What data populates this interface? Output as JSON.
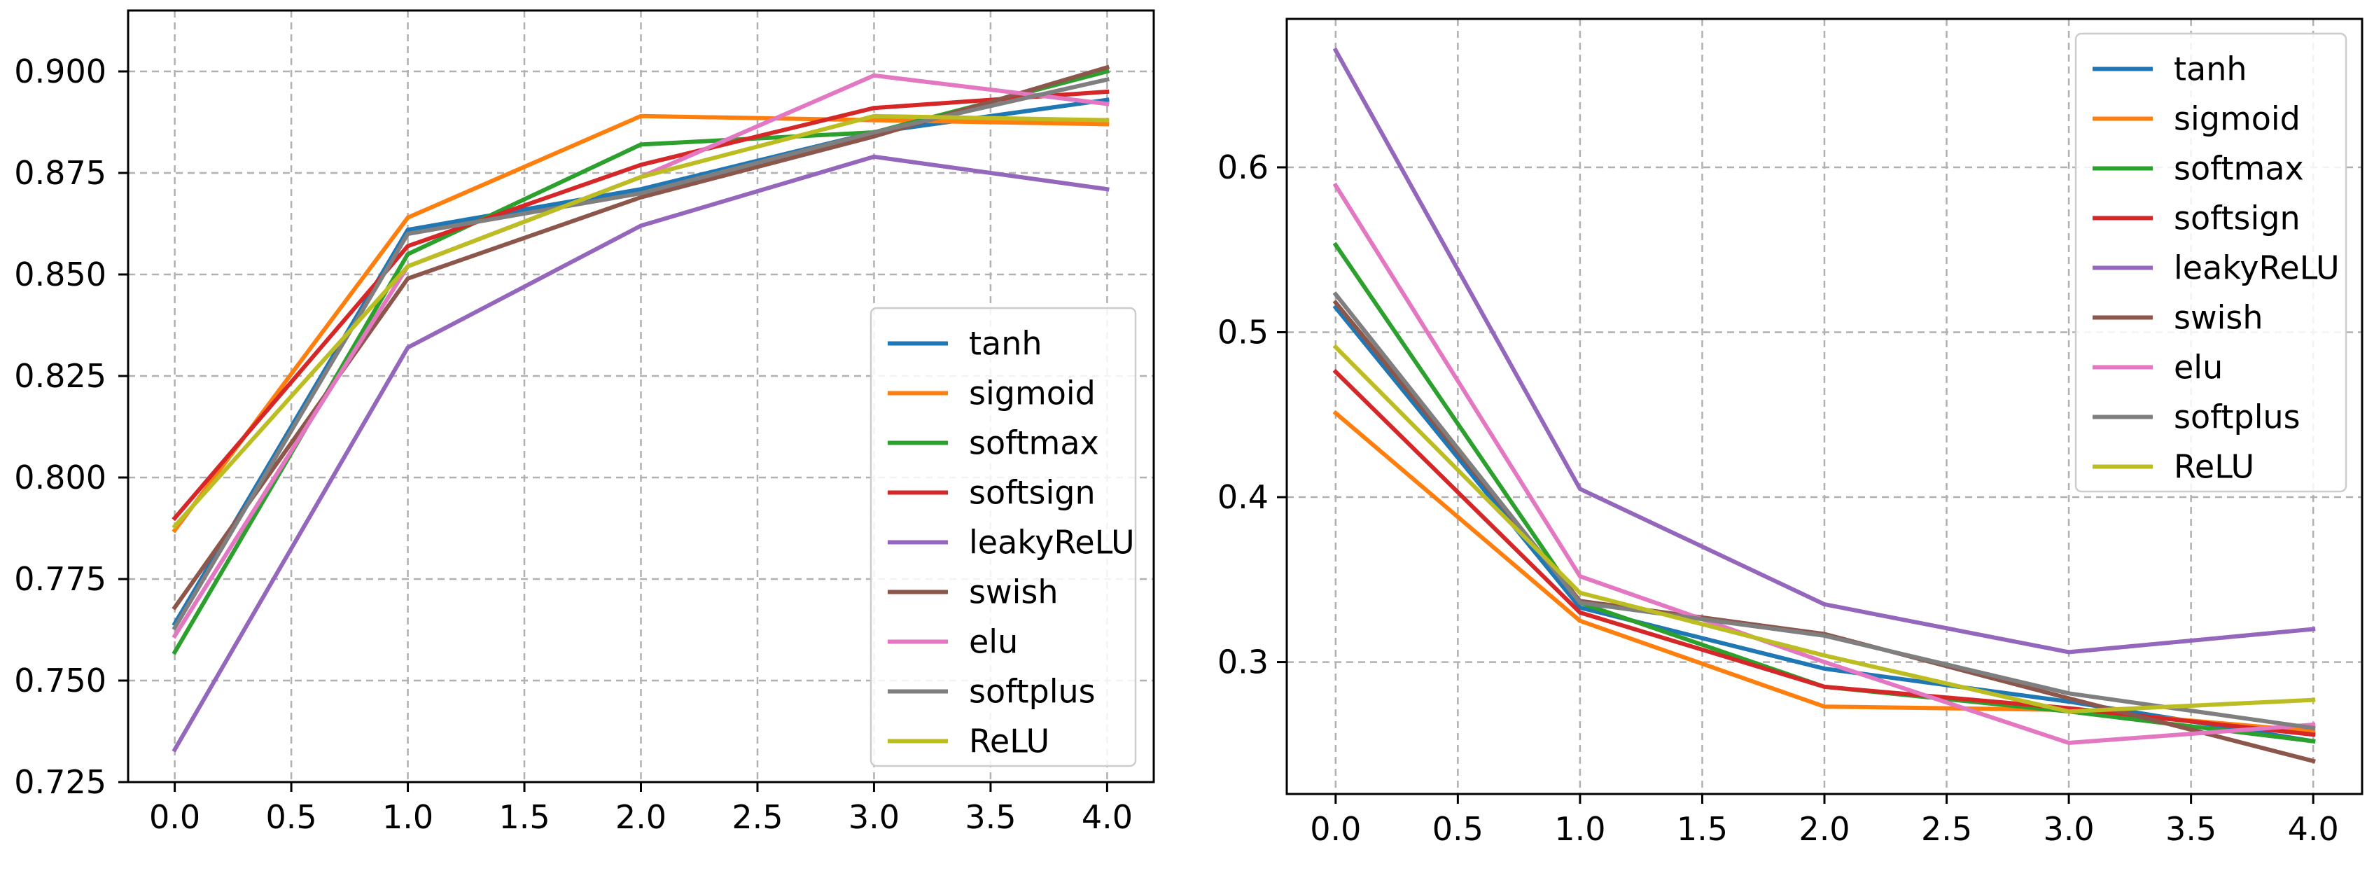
{
  "chart_data": [
    {
      "type": "line",
      "title": "",
      "xlabel": "",
      "ylabel": "",
      "grid": true,
      "legend_position": "lower-right",
      "xlim": [
        -0.2,
        4.2
      ],
      "ylim": [
        0.725,
        0.915
      ],
      "x": [
        0,
        1,
        2,
        3,
        4
      ],
      "x_ticks": [
        0.0,
        0.5,
        1.0,
        1.5,
        2.0,
        2.5,
        3.0,
        3.5,
        4.0
      ],
      "x_tick_labels": [
        "0.0",
        "0.5",
        "1.0",
        "1.5",
        "2.0",
        "2.5",
        "3.0",
        "3.5",
        "4.0"
      ],
      "y_ticks": [
        0.725,
        0.75,
        0.775,
        0.8,
        0.825,
        0.85,
        0.875,
        0.9
      ],
      "y_tick_labels": [
        "0.725",
        "0.750",
        "0.775",
        "0.800",
        "0.825",
        "0.850",
        "0.875",
        "0.900"
      ],
      "series": [
        {
          "name": "tanh",
          "color": "#1f77b4",
          "values": [
            0.764,
            0.861,
            0.871,
            0.885,
            0.893
          ]
        },
        {
          "name": "sigmoid",
          "color": "#ff7f0e",
          "values": [
            0.787,
            0.864,
            0.889,
            0.888,
            0.887
          ]
        },
        {
          "name": "softmax",
          "color": "#2ca02c",
          "values": [
            0.757,
            0.855,
            0.882,
            0.885,
            0.9
          ]
        },
        {
          "name": "softsign",
          "color": "#d62728",
          "values": [
            0.79,
            0.857,
            0.877,
            0.891,
            0.895
          ]
        },
        {
          "name": "leakyReLU",
          "color": "#9467bd",
          "values": [
            0.733,
            0.832,
            0.862,
            0.879,
            0.871
          ]
        },
        {
          "name": "swish",
          "color": "#8c564b",
          "values": [
            0.768,
            0.849,
            0.869,
            0.884,
            0.901
          ]
        },
        {
          "name": "elu",
          "color": "#e377c2",
          "values": [
            0.761,
            0.852,
            0.874,
            0.899,
            0.892
          ]
        },
        {
          "name": "softplus",
          "color": "#7f7f7f",
          "values": [
            0.763,
            0.86,
            0.87,
            0.885,
            0.898
          ]
        },
        {
          "name": "ReLU",
          "color": "#bcbd22",
          "values": [
            0.788,
            0.852,
            0.874,
            0.889,
            0.888
          ]
        }
      ]
    },
    {
      "type": "line",
      "title": "",
      "xlabel": "",
      "ylabel": "",
      "grid": true,
      "legend_position": "upper-right",
      "xlim": [
        -0.2,
        4.2
      ],
      "ylim": [
        0.22,
        0.69
      ],
      "x": [
        0,
        1,
        2,
        3,
        4
      ],
      "x_ticks": [
        0.0,
        0.5,
        1.0,
        1.5,
        2.0,
        2.5,
        3.0,
        3.5,
        4.0
      ],
      "x_tick_labels": [
        "0.0",
        "0.5",
        "1.0",
        "1.5",
        "2.0",
        "2.5",
        "3.0",
        "3.5",
        "4.0"
      ],
      "y_ticks": [
        0.3,
        0.4,
        0.5,
        0.6
      ],
      "y_tick_labels": [
        "0.3",
        "0.4",
        "0.5",
        "0.6"
      ],
      "series": [
        {
          "name": "tanh",
          "color": "#1f77b4",
          "values": [
            0.515,
            0.333,
            0.296,
            0.276,
            0.252
          ]
        },
        {
          "name": "sigmoid",
          "color": "#ff7f0e",
          "values": [
            0.451,
            0.325,
            0.273,
            0.271,
            0.258
          ]
        },
        {
          "name": "softmax",
          "color": "#2ca02c",
          "values": [
            0.553,
            0.336,
            0.285,
            0.27,
            0.252
          ]
        },
        {
          "name": "softsign",
          "color": "#d62728",
          "values": [
            0.476,
            0.33,
            0.285,
            0.272,
            0.256
          ]
        },
        {
          "name": "leakyReLU",
          "color": "#9467bd",
          "values": [
            0.671,
            0.405,
            0.335,
            0.306,
            0.32
          ]
        },
        {
          "name": "swish",
          "color": "#8c564b",
          "values": [
            0.518,
            0.337,
            0.317,
            0.278,
            0.24
          ]
        },
        {
          "name": "elu",
          "color": "#e377c2",
          "values": [
            0.589,
            0.352,
            0.3,
            0.251,
            0.262
          ]
        },
        {
          "name": "softplus",
          "color": "#7f7f7f",
          "values": [
            0.523,
            0.336,
            0.316,
            0.281,
            0.26
          ]
        },
        {
          "name": "ReLU",
          "color": "#bcbd22",
          "values": [
            0.491,
            0.342,
            0.304,
            0.27,
            0.277
          ]
        }
      ]
    }
  ]
}
